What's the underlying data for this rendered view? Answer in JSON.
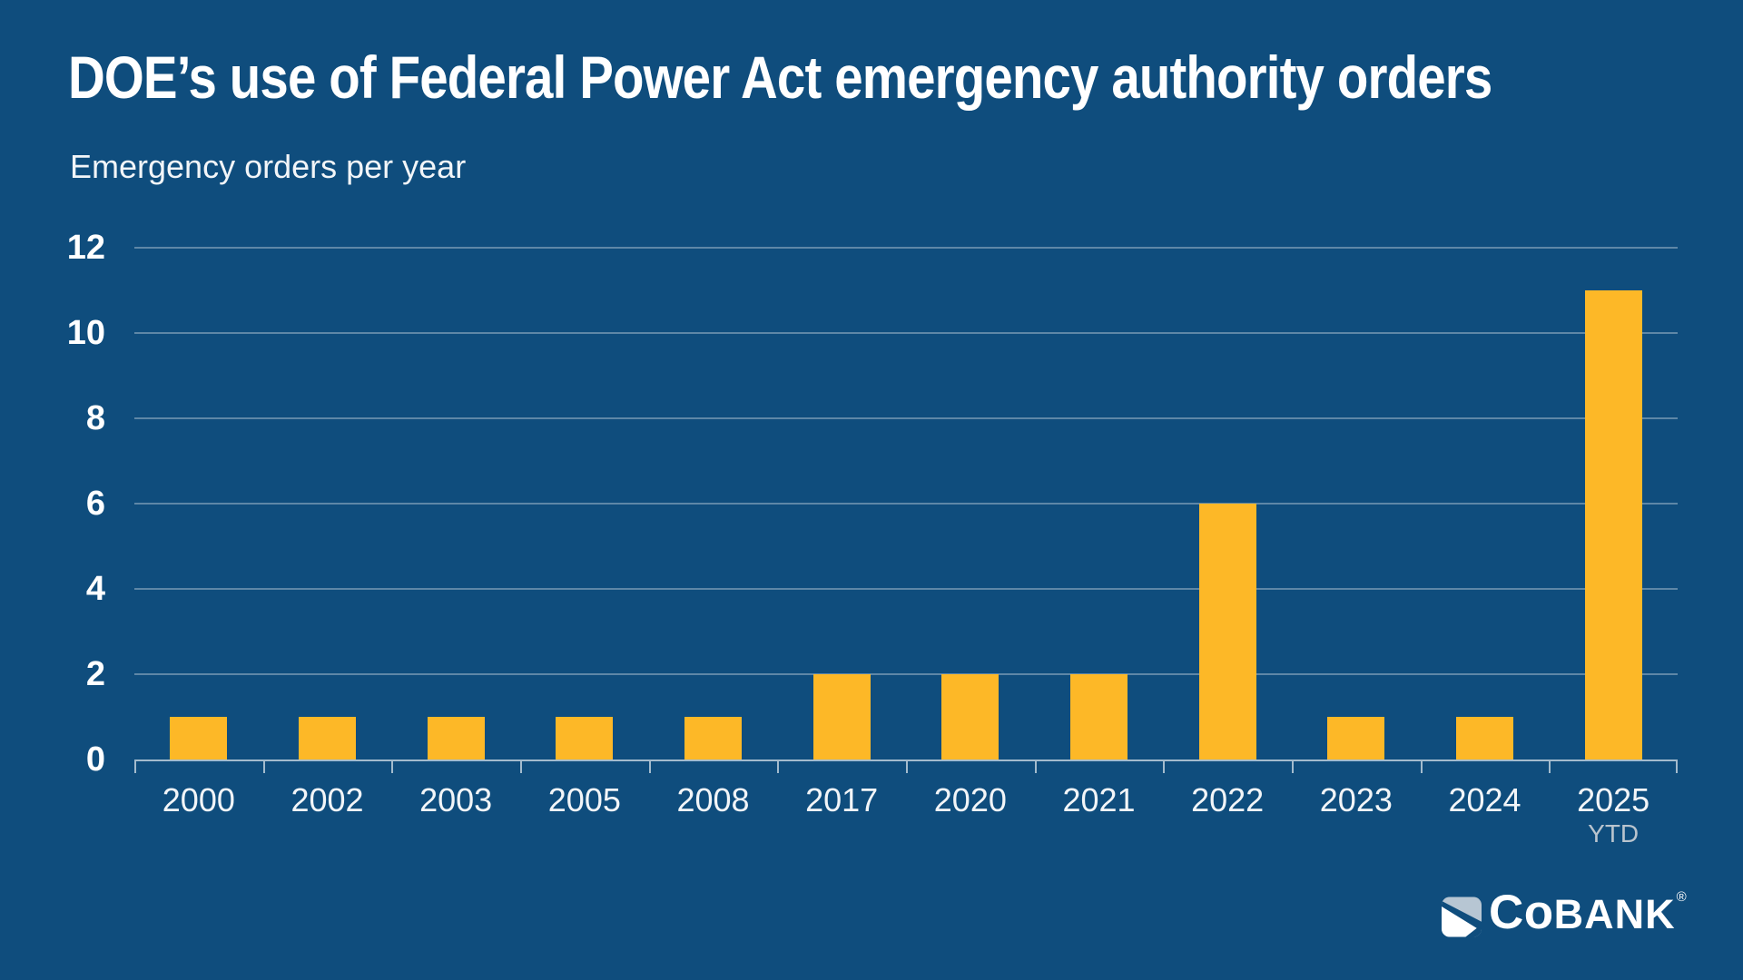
{
  "page": {
    "background_color": "#0F4D7D",
    "accent_color": "#FDB827"
  },
  "header": {
    "title": "DOE’s use of Federal Power Act emergency authority orders",
    "subtitle": "Emergency orders per year"
  },
  "chart_data": {
    "type": "bar",
    "title": "DOE’s use of Federal Power Act emergency authority orders",
    "subtitle": "Emergency orders per year",
    "categories": [
      "2000",
      "2002",
      "2003",
      "2005",
      "2008",
      "2017",
      "2020",
      "2021",
      "2022",
      "2023",
      "2024",
      "2025"
    ],
    "category_sublabels": [
      "",
      "",
      "",
      "",
      "",
      "",
      "",
      "",
      "",
      "",
      "",
      "YTD"
    ],
    "values": [
      1,
      1,
      1,
      1,
      1,
      2,
      2,
      2,
      6,
      1,
      1,
      11
    ],
    "xlabel": "",
    "ylabel": "Emergency orders per year",
    "ylim": [
      0,
      12
    ],
    "yticks": [
      0,
      2,
      4,
      6,
      8,
      10,
      12
    ],
    "grid": true,
    "legend": false,
    "bar_color": "#FDB827",
    "gridline_color": "rgba(255,255,255,0.33)",
    "axis_color": "rgba(255,255,255,0.62)",
    "tick_label_color": "#FFFFFF",
    "category_label_color": "#F2F5F8",
    "sublabel_color": "#B9C4CE"
  },
  "footer": {
    "logo_icon": "cobank-sail-icon",
    "wordmark_co": "Co",
    "wordmark_bank": "BANK",
    "registered": "®"
  }
}
